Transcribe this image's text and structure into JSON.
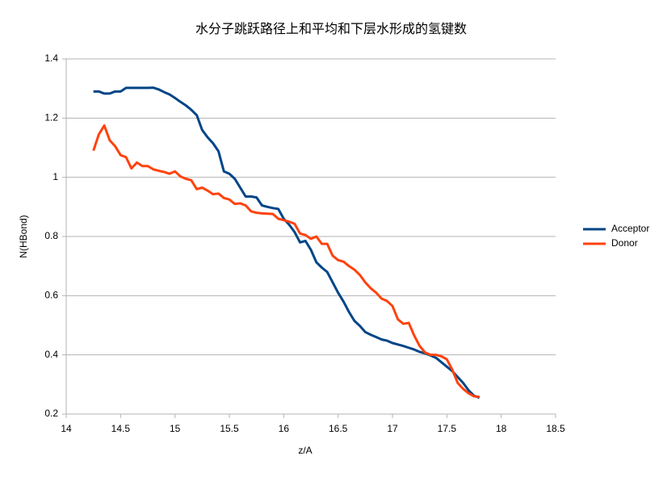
{
  "chart_data": {
    "type": "line",
    "title": "水分子跳跃路径上和平均和下层水形成的氢键数",
    "x_label": "z/A",
    "y_label": "N(HBond)",
    "x": [
      14.25,
      14.3,
      14.35,
      14.4,
      14.45,
      14.5,
      14.55,
      14.6,
      14.65,
      14.7,
      14.75,
      14.8,
      14.85,
      14.9,
      14.95,
      15.0,
      15.05,
      15.1,
      15.15,
      15.2,
      15.25,
      15.3,
      15.35,
      15.4,
      15.45,
      15.5,
      15.55,
      15.6,
      15.65,
      15.7,
      15.75,
      15.8,
      15.85,
      15.9,
      15.95,
      16.0,
      16.05,
      16.1,
      16.15,
      16.2,
      16.25,
      16.3,
      16.35,
      16.4,
      16.45,
      16.5,
      16.55,
      16.6,
      16.65,
      16.7,
      16.75,
      16.8,
      16.85,
      16.9,
      16.95,
      17.0,
      17.05,
      17.1,
      17.15,
      17.2,
      17.25,
      17.3,
      17.35,
      17.4,
      17.45,
      17.5,
      17.55,
      17.6,
      17.65,
      17.7,
      17.75,
      17.8
    ],
    "series": [
      {
        "name": "Acceptor",
        "color": "#004586",
        "values": [
          1.29,
          1.29,
          1.283,
          1.283,
          1.29,
          1.29,
          1.302,
          1.302,
          1.302,
          1.302,
          1.302,
          1.303,
          1.297,
          1.288,
          1.28,
          1.268,
          1.255,
          1.243,
          1.228,
          1.21,
          1.16,
          1.135,
          1.115,
          1.088,
          1.02,
          1.012,
          0.995,
          0.965,
          0.935,
          0.935,
          0.932,
          0.905,
          0.9,
          0.896,
          0.893,
          0.86,
          0.84,
          0.815,
          0.78,
          0.785,
          0.755,
          0.713,
          0.695,
          0.68,
          0.645,
          0.61,
          0.58,
          0.545,
          0.515,
          0.498,
          0.477,
          0.468,
          0.46,
          0.452,
          0.448,
          0.44,
          0.435,
          0.43,
          0.424,
          0.418,
          0.41,
          0.405,
          0.398,
          0.39,
          0.375,
          0.36,
          0.345,
          0.325,
          0.305,
          0.28,
          0.262,
          0.255
        ]
      },
      {
        "name": "Donor",
        "color": "#ff420e",
        "values": [
          1.09,
          1.145,
          1.175,
          1.125,
          1.105,
          1.075,
          1.068,
          1.03,
          1.05,
          1.038,
          1.038,
          1.027,
          1.022,
          1.018,
          1.012,
          1.02,
          1.003,
          0.995,
          0.99,
          0.96,
          0.965,
          0.955,
          0.943,
          0.945,
          0.93,
          0.925,
          0.91,
          0.912,
          0.905,
          0.885,
          0.88,
          0.878,
          0.877,
          0.876,
          0.86,
          0.855,
          0.85,
          0.843,
          0.81,
          0.805,
          0.792,
          0.8,
          0.775,
          0.775,
          0.735,
          0.72,
          0.715,
          0.7,
          0.688,
          0.67,
          0.645,
          0.625,
          0.61,
          0.59,
          0.582,
          0.565,
          0.52,
          0.505,
          0.508,
          0.465,
          0.43,
          0.408,
          0.4,
          0.4,
          0.395,
          0.385,
          0.35,
          0.305,
          0.285,
          0.27,
          0.26,
          0.258
        ]
      }
    ],
    "xlim": [
      14,
      18.5
    ],
    "xticks": [
      14,
      14.5,
      15,
      15.5,
      16,
      16.5,
      17,
      17.5,
      18,
      18.5
    ],
    "ylim": [
      0.2,
      1.4
    ],
    "yticks": [
      0.2,
      0.4,
      0.6,
      0.8,
      1,
      1.2,
      1.4
    ],
    "grid": true,
    "legend": "right"
  }
}
